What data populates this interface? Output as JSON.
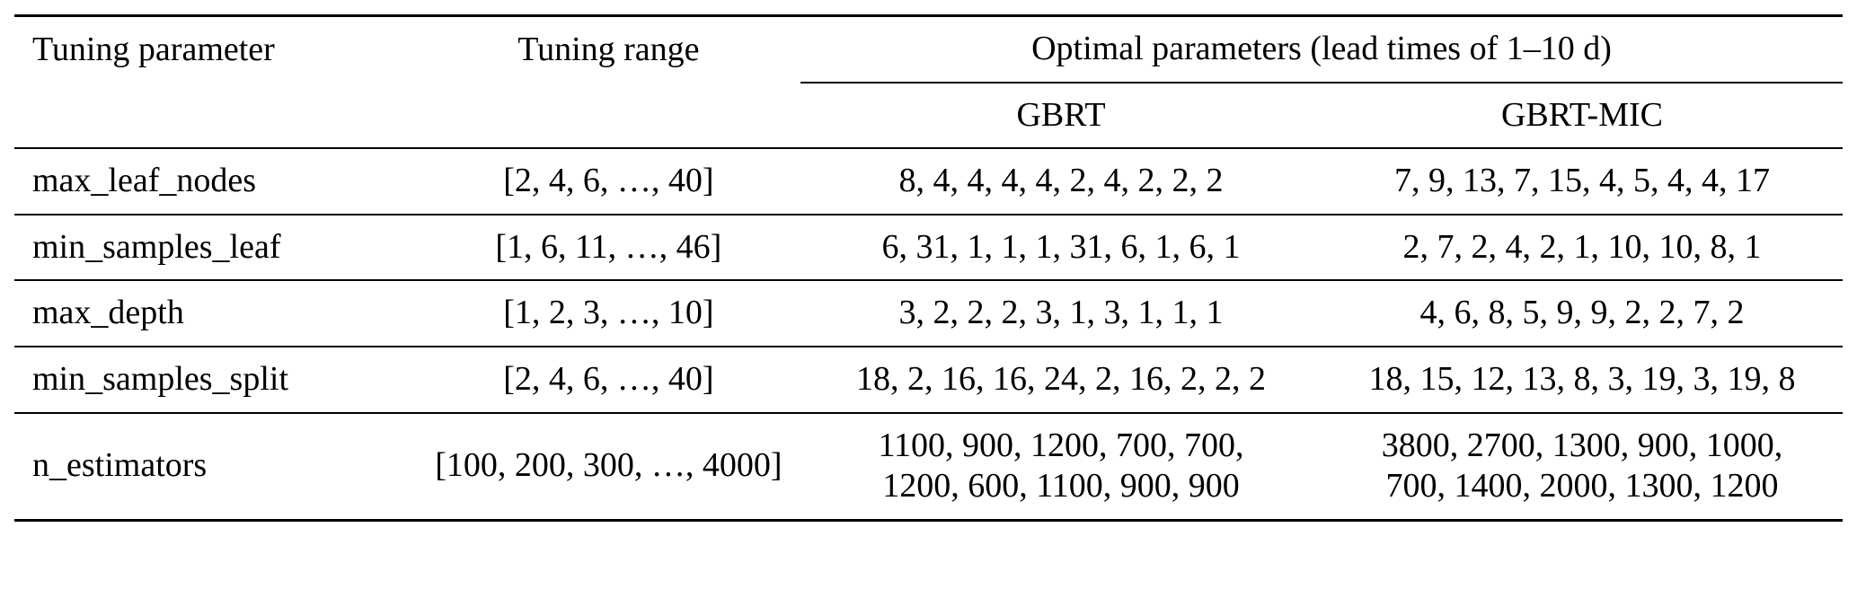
{
  "table": {
    "header": {
      "tuning_parameter": "Tuning parameter",
      "tuning_range": "Tuning range",
      "optimal_parameters": "Optimal parameters (lead times of 1–10 d)",
      "gbrt": "GBRT",
      "gbrt_mic": "GBRT-MIC"
    },
    "rows": [
      {
        "param": "max_leaf_nodes",
        "range": "[2, 4, 6, …, 40]",
        "gbrt": "8, 4, 4, 4, 4, 2, 4, 2, 2, 2",
        "gbrt_mic": "7, 9, 13, 7, 15, 4, 5, 4, 4, 17"
      },
      {
        "param": "min_samples_leaf",
        "range": "[1, 6, 11, …, 46]",
        "gbrt": "6, 31, 1, 1, 1, 31, 6, 1, 6, 1",
        "gbrt_mic": "2, 7, 2, 4, 2, 1, 10, 10, 8, 1"
      },
      {
        "param": "max_depth",
        "range": "[1, 2, 3, …, 10]",
        "gbrt": "3, 2, 2, 2, 3, 1, 3, 1, 1, 1",
        "gbrt_mic": "4, 6, 8, 5, 9, 9, 2, 2, 7, 2"
      },
      {
        "param": "min_samples_split",
        "range": "[2, 4, 6, …, 40]",
        "gbrt": "18, 2, 16, 16, 24, 2, 16, 2, 2, 2",
        "gbrt_mic": "18, 15, 12, 13, 8, 3, 19, 3, 19, 8"
      },
      {
        "param": "n_estimators",
        "range": "[100, 200, 300, …, 4000]",
        "gbrt": "1100, 900, 1200, 700, 700,\n1200, 600, 1100, 900, 900",
        "gbrt_mic": "3800, 2700, 1300, 900, 1000,\n700, 1400, 2000, 1300, 1200"
      }
    ]
  }
}
